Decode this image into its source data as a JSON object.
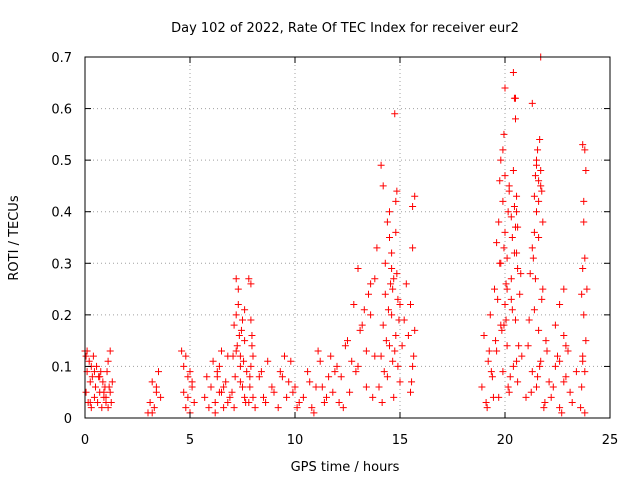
{
  "chart_data": {
    "type": "scatter",
    "title": "Day 102 of 2022, Rate Of TEC Index for receiver eur2",
    "xlabel": "GPS time / hours",
    "ylabel": "ROTI / TECUs",
    "xlim": [
      0,
      25
    ],
    "ylim": [
      0,
      0.7
    ],
    "x_ticks": [
      0,
      5,
      10,
      15,
      20,
      25
    ],
    "y_ticks": [
      0,
      0.1,
      0.2,
      0.3,
      0.4,
      0.5,
      0.6,
      0.7
    ],
    "x_tick_labels": [
      "0",
      "5",
      "10",
      "15",
      "20",
      "25"
    ],
    "y_tick_labels": [
      "0",
      "0.1",
      "0.2",
      "0.3",
      "0.4",
      "0.5",
      "0.6",
      "0.7"
    ],
    "grid": true,
    "marker": "+",
    "color": "#ff0000",
    "series": [
      {
        "x": [
          0.0,
          0.05,
          0.1,
          0.15,
          0.2,
          0.25,
          0.3,
          0.35,
          0.4,
          0.45,
          0.5,
          0.55,
          0.6,
          0.65,
          0.7,
          0.75,
          0.8,
          0.85,
          0.9,
          0.95,
          1.0,
          0.1,
          0.3,
          0.5,
          0.7,
          0.9,
          0.05,
          0.25,
          0.45,
          1.0,
          1.05,
          1.1,
          1.15,
          1.2,
          1.25,
          1.3,
          1.1,
          1.2,
          3.0,
          3.1,
          3.2,
          3.3,
          3.4,
          3.5,
          3.6,
          3.2,
          3.4,
          4.6,
          4.7,
          4.8,
          4.9,
          5.0,
          5.1,
          5.2,
          4.7,
          4.9,
          5.1,
          4.8,
          5.0,
          5.7,
          5.8,
          5.9,
          6.0,
          6.1,
          6.2,
          6.3,
          6.4,
          6.5,
          6.6,
          6.7,
          6.8,
          6.9,
          6.2,
          6.4,
          6.6,
          6.8,
          6.3,
          6.5,
          7.0,
          7.05,
          7.1,
          7.15,
          7.2,
          7.25,
          7.3,
          7.35,
          7.4,
          7.45,
          7.5,
          7.55,
          7.6,
          7.65,
          7.7,
          7.1,
          7.2,
          7.3,
          7.4,
          7.5,
          7.6,
          7.2,
          7.4,
          7.6,
          7.8,
          7.85,
          7.9,
          7.95,
          8.0,
          7.9,
          7.85,
          8.0,
          7.95,
          7.8,
          7.9,
          8.1,
          8.3,
          8.5,
          8.7,
          8.9,
          8.4,
          8.6,
          9.0,
          9.2,
          9.4,
          9.6,
          9.8,
          10.0,
          10.2,
          9.3,
          9.7,
          10.1,
          9.5,
          9.9,
          10.4,
          10.6,
          10.8,
          11.0,
          11.2,
          11.4,
          11.6,
          11.8,
          12.0,
          10.7,
          11.1,
          11.5,
          11.9,
          11.3,
          11.7,
          12.1,
          10.9,
          12.2,
          12.4,
          12.6,
          12.8,
          13.0,
          13.2,
          13.4,
          13.6,
          13.8,
          12.5,
          12.9,
          13.3,
          13.7,
          13.1,
          13.5,
          12.7,
          13.9,
          12.3,
          13.0,
          13.4,
          13.8,
          13.6,
          14.0,
          14.1,
          14.2,
          14.3,
          14.4,
          14.5,
          14.6,
          14.7,
          14.8,
          14.9,
          15.0,
          14.15,
          14.35,
          14.55,
          14.75,
          14.95,
          14.25,
          14.45,
          14.65,
          14.85,
          14.3,
          14.5,
          14.7,
          14.9,
          14.4,
          14.6,
          14.8,
          14.2,
          14.75,
          14.1,
          14.85,
          14.6,
          14.5,
          14.65,
          14.8,
          15.0,
          15.1,
          15.2,
          15.3,
          15.5,
          15.6,
          15.7,
          15.5,
          15.6,
          15.7,
          15.6,
          15.55,
          15.65,
          15.4,
          18.9,
          19.0,
          19.1,
          19.2,
          19.3,
          19.4,
          19.5,
          19.6,
          19.7,
          19.8,
          19.9,
          20.0,
          20.1,
          20.2,
          20.3,
          20.4,
          20.5,
          20.6,
          20.7,
          20.8,
          19.15,
          19.35,
          19.55,
          19.75,
          19.95,
          20.15,
          20.35,
          20.55,
          20.75,
          19.25,
          19.45,
          19.65,
          19.85,
          20.05,
          20.25,
          20.45,
          20.65,
          19.6,
          19.7,
          19.8,
          19.9,
          20.0,
          20.1,
          20.2,
          20.3,
          20.4,
          20.5,
          20.6,
          19.75,
          19.95,
          20.15,
          20.35,
          20.55,
          19.8,
          19.9,
          20.0,
          20.2,
          20.4,
          20.45,
          20.5,
          20.55,
          20.6,
          20.0,
          20.1,
          20.3,
          19.95,
          20.05,
          20.5,
          20.45,
          20.55,
          21.0,
          21.1,
          21.2,
          21.3,
          21.4,
          21.5,
          21.6,
          21.7,
          21.8,
          21.9,
          22.0,
          22.1,
          21.15,
          21.35,
          21.55,
          21.75,
          21.95,
          21.25,
          21.45,
          21.65,
          21.85,
          21.3,
          21.4,
          21.5,
          21.6,
          21.7,
          21.8,
          21.5,
          21.55,
          21.65,
          21.7,
          21.6,
          21.45,
          21.5,
          21.3,
          21.75,
          21.7,
          21.6,
          21.4,
          22.2,
          22.4,
          22.6,
          22.8,
          23.0,
          23.2,
          23.4,
          22.3,
          22.5,
          22.7,
          22.9,
          23.1,
          22.6,
          22.4,
          22.8,
          22.6,
          22.8,
          22.9,
          23.6,
          23.65,
          23.7,
          23.75,
          23.8,
          23.85,
          23.9,
          23.7,
          23.8,
          23.75,
          23.85,
          23.7,
          23.8,
          23.75,
          23.65,
          23.8,
          23.7
        ],
        "y": [
          0.13,
          0.05,
          0.09,
          0.03,
          0.11,
          0.07,
          0.02,
          0.08,
          0.12,
          0.04,
          0.06,
          0.1,
          0.03,
          0.08,
          0.05,
          0.09,
          0.02,
          0.07,
          0.04,
          0.06,
          0.03,
          0.13,
          0.1,
          0.06,
          0.08,
          0.05,
          0.12,
          0.03,
          0.09,
          0.04,
          0.09,
          0.02,
          0.06,
          0.13,
          0.03,
          0.07,
          0.11,
          0.05,
          0.01,
          0.03,
          0.07,
          0.02,
          0.05,
          0.09,
          0.04,
          0.01,
          0.06,
          0.13,
          0.05,
          0.02,
          0.08,
          0.01,
          0.06,
          0.03,
          0.1,
          0.04,
          0.07,
          0.12,
          0.09,
          0.04,
          0.08,
          0.02,
          0.06,
          0.11,
          0.03,
          0.09,
          0.05,
          0.13,
          0.02,
          0.07,
          0.12,
          0.04,
          0.01,
          0.1,
          0.06,
          0.03,
          0.08,
          0.05,
          0.05,
          0.12,
          0.18,
          0.08,
          0.2,
          0.14,
          0.22,
          0.16,
          0.1,
          0.17,
          0.06,
          0.11,
          0.15,
          0.03,
          0.09,
          0.02,
          0.13,
          0.25,
          0.07,
          0.19,
          0.04,
          0.27,
          0.12,
          0.21,
          0.27,
          0.06,
          0.1,
          0.14,
          0.04,
          0.19,
          0.08,
          0.12,
          0.16,
          0.03,
          0.26,
          0.02,
          0.08,
          0.04,
          0.11,
          0.06,
          0.09,
          0.03,
          0.05,
          0.02,
          0.08,
          0.04,
          0.11,
          0.06,
          0.03,
          0.09,
          0.07,
          0.02,
          0.12,
          0.05,
          0.04,
          0.09,
          0.02,
          0.06,
          0.11,
          0.03,
          0.08,
          0.05,
          0.1,
          0.07,
          0.13,
          0.04,
          0.09,
          0.06,
          0.12,
          0.03,
          0.01,
          0.08,
          0.14,
          0.05,
          0.22,
          0.1,
          0.18,
          0.06,
          0.26,
          0.12,
          0.15,
          0.09,
          0.21,
          0.04,
          0.17,
          0.24,
          0.11,
          0.33,
          0.02,
          0.29,
          0.13,
          0.27,
          0.2,
          0.06,
          0.12,
          0.18,
          0.24,
          0.08,
          0.14,
          0.2,
          0.04,
          0.16,
          0.1,
          0.22,
          0.03,
          0.15,
          0.26,
          0.13,
          0.19,
          0.09,
          0.21,
          0.11,
          0.28,
          0.3,
          0.35,
          0.27,
          0.23,
          0.38,
          0.32,
          0.42,
          0.45,
          0.59,
          0.49,
          0.44,
          0.29,
          0.4,
          0.25,
          0.36,
          0.07,
          0.14,
          0.19,
          0.26,
          0.05,
          0.1,
          0.17,
          0.22,
          0.41,
          0.43,
          0.33,
          0.07,
          0.12,
          0.16,
          0.06,
          0.16,
          0.03,
          0.11,
          0.2,
          0.08,
          0.25,
          0.13,
          0.04,
          0.18,
          0.09,
          0.22,
          0.14,
          0.05,
          0.27,
          0.1,
          0.19,
          0.07,
          0.24,
          0.12,
          0.02,
          0.09,
          0.15,
          0.3,
          0.18,
          0.06,
          0.21,
          0.11,
          0.28,
          0.13,
          0.04,
          0.23,
          0.17,
          0.26,
          0.08,
          0.32,
          0.14,
          0.34,
          0.38,
          0.3,
          0.42,
          0.36,
          0.31,
          0.44,
          0.39,
          0.48,
          0.37,
          0.29,
          0.46,
          0.33,
          0.4,
          0.35,
          0.43,
          0.5,
          0.52,
          0.47,
          0.45,
          0.67,
          0.62,
          0.58,
          0.4,
          0.37,
          0.64,
          0.25,
          0.23,
          0.55,
          0.19,
          0.62,
          0.41,
          0.32,
          0.04,
          0.14,
          0.28,
          0.09,
          0.21,
          0.06,
          0.17,
          0.11,
          0.25,
          0.03,
          0.13,
          0.07,
          0.19,
          0.31,
          0.08,
          0.23,
          0.15,
          0.05,
          0.27,
          0.1,
          0.02,
          0.33,
          0.36,
          0.4,
          0.42,
          0.45,
          0.38,
          0.49,
          0.52,
          0.54,
          0.48,
          0.35,
          0.47,
          0.5,
          0.61,
          0.44,
          0.7,
          0.46,
          0.43,
          0.04,
          0.1,
          0.02,
          0.07,
          0.13,
          0.03,
          0.09,
          0.06,
          0.12,
          0.01,
          0.08,
          0.05,
          0.11,
          0.18,
          0.16,
          0.22,
          0.25,
          0.14,
          0.02,
          0.06,
          0.12,
          0.2,
          0.09,
          0.15,
          0.25,
          0.29,
          0.31,
          0.42,
          0.48,
          0.53,
          0.52,
          0.38,
          0.24,
          0.01,
          0.11
        ]
      }
    ]
  }
}
